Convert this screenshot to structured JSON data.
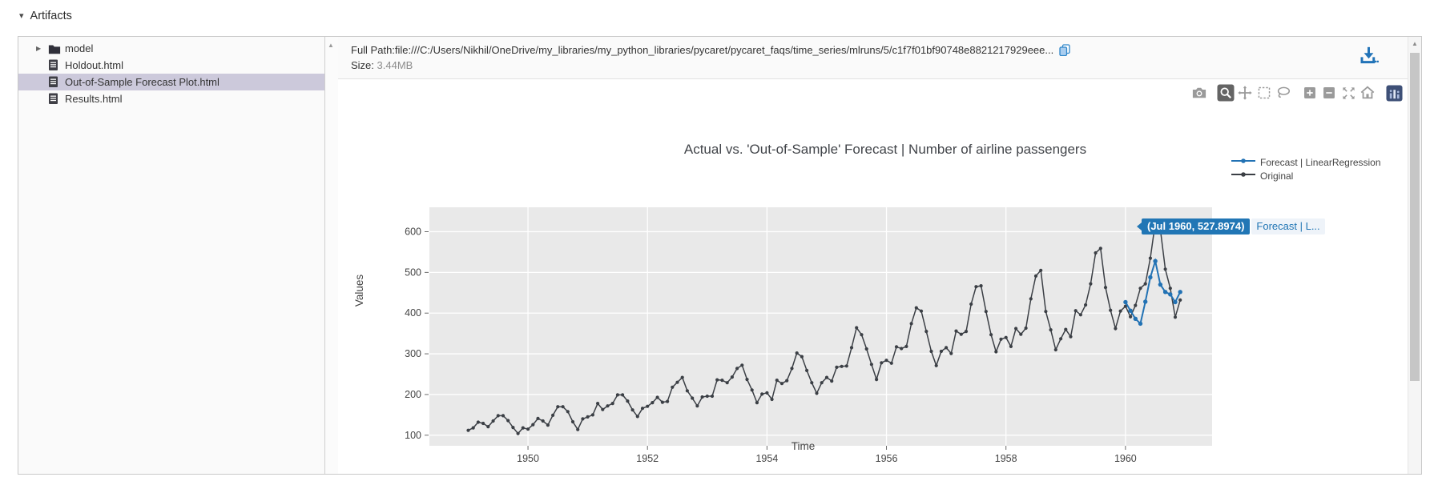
{
  "artifacts_header": {
    "label": "Artifacts",
    "collapse_icon": "caret-down"
  },
  "artifact_tree": {
    "items": [
      {
        "type": "folder",
        "label": "model",
        "expandable": true,
        "selected": false
      },
      {
        "type": "file",
        "label": "Holdout.html",
        "selected": false
      },
      {
        "type": "file",
        "label": "Out-of-Sample Forecast Plot.html",
        "selected": true
      },
      {
        "type": "file",
        "label": "Results.html",
        "selected": false
      }
    ]
  },
  "file_info": {
    "full_path_label": "Full Path:",
    "full_path_value": "file:///C:/Users/Nikhil/OneDrive/my_libraries/my_python_libraries/pycaret/pycaret_faqs/time_series/mlruns/5/c1f7f01bf90748e8821217929eee...",
    "size_label": "Size:",
    "size_value": " 3.44MB"
  },
  "viewer": {
    "modebar_buttons": [
      {
        "name": "camera-icon",
        "active": false,
        "group_start": false
      },
      {
        "name": "zoom-icon",
        "active": true,
        "group_start": true
      },
      {
        "name": "pan-icon",
        "active": false,
        "group_start": false
      },
      {
        "name": "box-select-icon",
        "active": false,
        "group_start": false
      },
      {
        "name": "lasso-select-icon",
        "active": false,
        "group_start": false
      },
      {
        "name": "zoom-in-icon",
        "active": false,
        "group_start": true
      },
      {
        "name": "zoom-out-icon",
        "active": false,
        "group_start": false
      },
      {
        "name": "autoscale-icon",
        "active": false,
        "group_start": false
      },
      {
        "name": "reset-axes-icon",
        "active": false,
        "group_start": false
      },
      {
        "name": "plotly-logo-icon",
        "active": false,
        "group_start": true
      }
    ]
  },
  "tooltip": {
    "point_label": "(Jul 1960, 527.8974)",
    "series_label": "Forecast | L..."
  },
  "chart_data": {
    "type": "line",
    "title": "Actual vs. 'Out-of-Sample' Forecast | Number of airline passengers",
    "xlabel": "Time",
    "ylabel": "Values",
    "x_ticks": [
      1950,
      1952,
      1954,
      1956,
      1958,
      1960
    ],
    "y_ticks": [
      100,
      200,
      300,
      400,
      500,
      600
    ],
    "xlim": [
      1948.35,
      1961.45
    ],
    "ylim": [
      74,
      660
    ],
    "grid": true,
    "legend_position": "outside-top-right",
    "hover_point": {
      "series": "Forecast | LinearRegression",
      "x": "Jul 1960",
      "y": 527.8974
    },
    "series": [
      {
        "name": "Forecast | LinearRegression",
        "color": "#2272b4",
        "start_year": 1960,
        "monthly_values": [
          427,
          406,
          386,
          374,
          428,
          488,
          527.8974,
          470,
          452,
          446,
          427,
          452
        ]
      },
      {
        "name": "Original",
        "color": "#3b3f45",
        "start_year": 1949,
        "monthly_values": [
          112,
          118,
          132,
          129,
          121,
          135,
          148,
          148,
          136,
          119,
          104,
          118,
          115,
          126,
          141,
          135,
          125,
          149,
          170,
          170,
          158,
          133,
          114,
          140,
          145,
          150,
          178,
          163,
          172,
          178,
          199,
          199,
          184,
          162,
          146,
          166,
          171,
          180,
          193,
          181,
          183,
          218,
          230,
          242,
          209,
          191,
          172,
          194,
          196,
          196,
          236,
          235,
          229,
          243,
          264,
          272,
          237,
          211,
          180,
          201,
          204,
          188,
          235,
          227,
          234,
          264,
          302,
          293,
          259,
          229,
          203,
          229,
          242,
          233,
          267,
          269,
          270,
          315,
          364,
          347,
          312,
          274,
          237,
          278,
          284,
          277,
          317,
          313,
          318,
          374,
          413,
          405,
          355,
          306,
          271,
          306,
          315,
          301,
          356,
          348,
          355,
          422,
          465,
          467,
          404,
          347,
          305,
          336,
          340,
          318,
          362,
          348,
          363,
          435,
          491,
          505,
          404,
          359,
          310,
          337,
          360,
          342,
          406,
          396,
          420,
          472,
          548,
          559,
          463,
          407,
          362,
          405,
          417,
          391,
          419,
          461,
          472,
          535,
          622,
          606,
          508,
          461,
          390,
          432
        ]
      }
    ]
  },
  "colors": {
    "accent_blue": "#2272b4",
    "tooltip_bg": "#2176b5",
    "plot_bg": "#e9e9e9",
    "grid_line": "#ffffff",
    "axis_text": "#444444",
    "selected_row_bg": "#ccc9db",
    "modebar_icon": "#9a9a9a",
    "modebar_active": "#646464"
  }
}
